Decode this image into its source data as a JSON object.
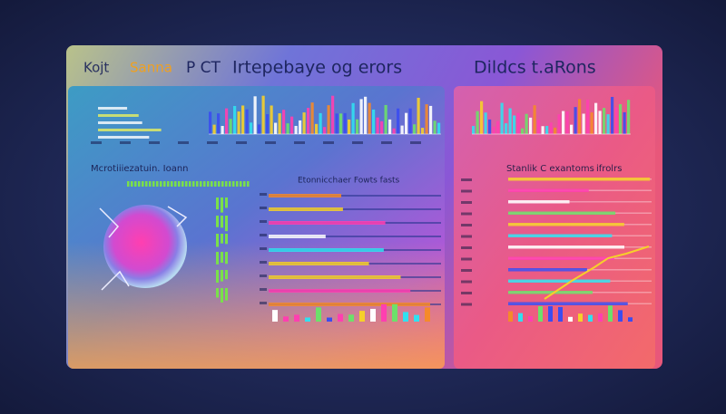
{
  "header": {
    "logo": "Kojt",
    "brand": "Sanna",
    "tag": "P CT",
    "title": "Irtepebaye og erors",
    "right_title": "Dildcs t.aRons"
  },
  "left_panel": {
    "section_title": "Mcrotiiiezatuin. Ioann",
    "chart_title": "Etonnicchaer Fowts fasts"
  },
  "right_panel": {
    "section_title": "Stanlik C exantoms",
    "side_label": "ifrolrs"
  }
}
